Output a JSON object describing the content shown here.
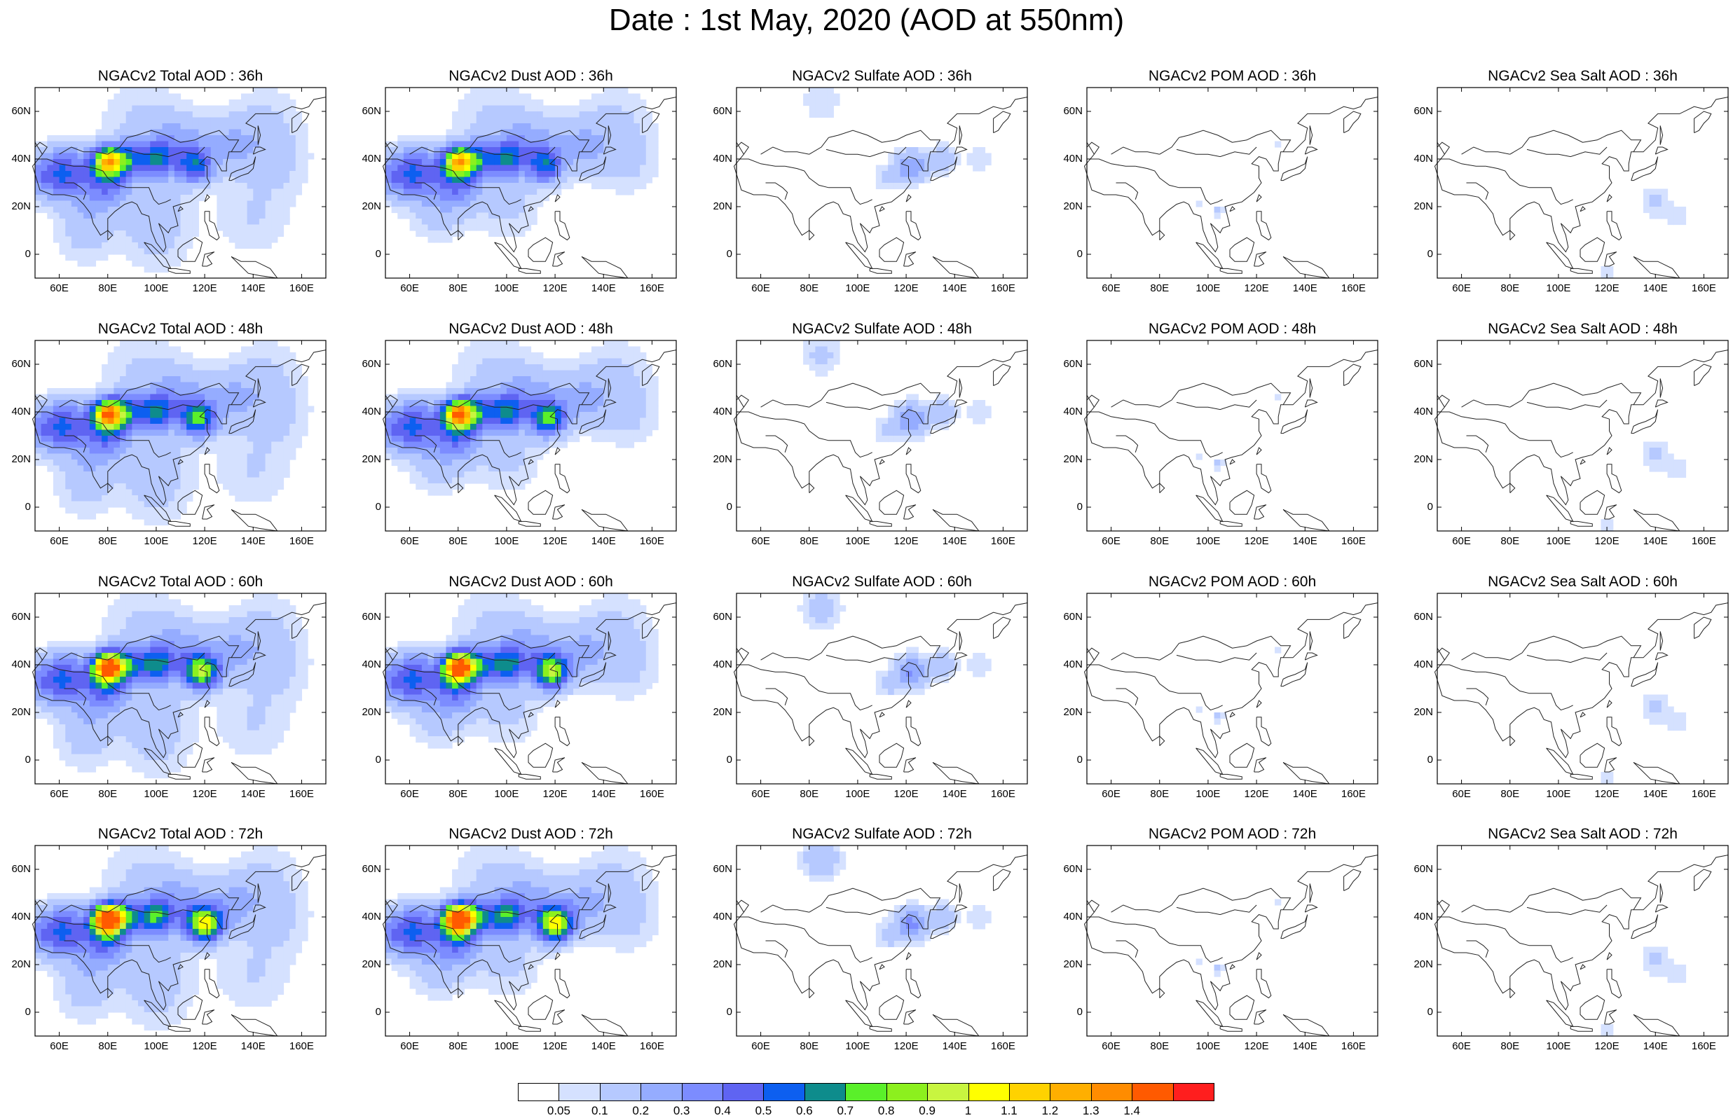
{
  "title": "Date : 1st May, 2020 (AOD at 550nm)",
  "panels": [
    {
      "title": "NGACv2 Total AOD : 36h",
      "species": "total",
      "hour": 36
    },
    {
      "title": "NGACv2 Dust AOD : 36h",
      "species": "dust",
      "hour": 36
    },
    {
      "title": "NGACv2 Sulfate AOD : 36h",
      "species": "sulfate",
      "hour": 36
    },
    {
      "title": "NGACv2 POM AOD : 36h",
      "species": "pom",
      "hour": 36
    },
    {
      "title": "NGACv2 Sea Salt AOD : 36h",
      "species": "seasalt",
      "hour": 36
    },
    {
      "title": "NGACv2 Total AOD : 48h",
      "species": "total",
      "hour": 48
    },
    {
      "title": "NGACv2 Dust AOD : 48h",
      "species": "dust",
      "hour": 48
    },
    {
      "title": "NGACv2 Sulfate AOD : 48h",
      "species": "sulfate",
      "hour": 48
    },
    {
      "title": "NGACv2 POM AOD : 48h",
      "species": "pom",
      "hour": 48
    },
    {
      "title": "NGACv2 Sea Salt AOD : 48h",
      "species": "seasalt",
      "hour": 48
    },
    {
      "title": "NGACv2 Total AOD : 60h",
      "species": "total",
      "hour": 60
    },
    {
      "title": "NGACv2 Dust AOD : 60h",
      "species": "dust",
      "hour": 60
    },
    {
      "title": "NGACv2 Sulfate AOD : 60h",
      "species": "sulfate",
      "hour": 60
    },
    {
      "title": "NGACv2 POM AOD : 60h",
      "species": "pom",
      "hour": 60
    },
    {
      "title": "NGACv2 Sea Salt AOD : 60h",
      "species": "seasalt",
      "hour": 60
    },
    {
      "title": "NGACv2 Total AOD : 72h",
      "species": "total",
      "hour": 72
    },
    {
      "title": "NGACv2 Dust AOD : 72h",
      "species": "dust",
      "hour": 72
    },
    {
      "title": "NGACv2 Sulfate AOD : 72h",
      "species": "sulfate",
      "hour": 72
    },
    {
      "title": "NGACv2 POM AOD : 72h",
      "species": "pom",
      "hour": 72
    },
    {
      "title": "NGACv2 Sea Salt  AOD : 72h",
      "species": "seasalt",
      "hour": 72
    }
  ],
  "map": {
    "lon_range": [
      50,
      170
    ],
    "lat_range": [
      -10,
      70
    ],
    "lat_ticks": [
      "60N",
      "40N",
      "20N",
      "0"
    ],
    "lat_tick_values": [
      60,
      40,
      20,
      0
    ],
    "lon_ticks": [
      "60E",
      "80E",
      "100E",
      "120E",
      "140E",
      "160E"
    ],
    "lon_tick_values": [
      60,
      80,
      100,
      120,
      140,
      160
    ]
  },
  "colorbar": {
    "colors": [
      "#ffffff",
      "#d5e1ff",
      "#b6c9ff",
      "#95acff",
      "#7c8cff",
      "#5f64f2",
      "#0d5ff0",
      "#0e8c8c",
      "#5af02a",
      "#8cf01e",
      "#c8f540",
      "#ffff00",
      "#ffd200",
      "#ffaf00",
      "#ff8c00",
      "#ff5a00",
      "#ff1e1e"
    ],
    "labels": [
      "0.05",
      "0.1",
      "0.2",
      "0.3",
      "0.4",
      "0.5",
      "0.6",
      "0.7",
      "0.8",
      "0.9",
      "1",
      "1.1",
      "1.2",
      "1.3",
      "1.4"
    ]
  }
}
